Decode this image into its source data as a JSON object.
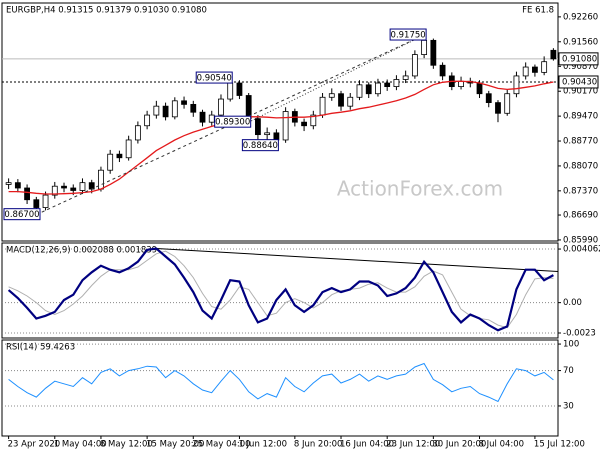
{
  "chart_data": [
    {
      "type": "candlestick",
      "title": "EURGBP,H4 0.91315 0.91379 0.91030 0.91080",
      "corner_label": "FE 61.8",
      "watermark": "ActionForex.com",
      "categories": [
        "23 Apr 2020",
        null,
        null,
        null,
        null,
        "1 May 04:00",
        null,
        null,
        null,
        null,
        "8 May 12:00",
        null,
        null,
        null,
        null,
        "15 May 20:00",
        null,
        null,
        null,
        null,
        "25 May 04:00",
        null,
        null,
        null,
        null,
        "1 Jun 12:00",
        null,
        null,
        null,
        null,
        null,
        "8 Jun 20:00",
        null,
        null,
        null,
        null,
        "16 Jun 04:00",
        null,
        null,
        null,
        null,
        "23 Jun 12:00",
        null,
        null,
        null,
        null,
        "30 Jun 20:00",
        null,
        null,
        null,
        null,
        "8 Jul 04:00",
        null,
        null,
        null,
        null,
        null,
        "15 Jul 12:00",
        null,
        null
      ],
      "open": [
        0.8755,
        0.876,
        0.8745,
        0.8712,
        0.869,
        0.8725,
        0.875,
        0.8745,
        0.8738,
        0.876,
        0.8742,
        0.8795,
        0.884,
        0.883,
        0.888,
        0.892,
        0.895,
        0.8975,
        0.8945,
        0.899,
        0.898,
        0.8958,
        0.893,
        0.895,
        0.8995,
        0.904,
        0.9005,
        0.894,
        0.8895,
        0.89,
        0.888,
        0.896,
        0.893,
        0.892,
        0.895,
        0.9,
        0.901,
        0.8975,
        0.9,
        0.9035,
        0.901,
        0.904,
        0.903,
        0.905,
        0.906,
        0.912,
        0.916,
        0.909,
        0.906,
        0.903,
        0.9045,
        0.904,
        0.901,
        0.8985,
        0.8955,
        0.901,
        0.906,
        0.9085,
        0.907,
        0.9132
      ],
      "high": [
        0.8772,
        0.877,
        0.8755,
        0.872,
        0.8735,
        0.8762,
        0.876,
        0.8755,
        0.8772,
        0.8768,
        0.8805,
        0.8852,
        0.885,
        0.8892,
        0.8932,
        0.8962,
        0.899,
        0.8985,
        0.9,
        0.9002,
        0.899,
        0.8965,
        0.8962,
        0.9008,
        0.9054,
        0.9048,
        0.9012,
        0.895,
        0.8915,
        0.891,
        0.8972,
        0.8968,
        0.894,
        0.8962,
        0.9012,
        0.9025,
        0.9018,
        0.9012,
        0.9048,
        0.9042,
        0.9052,
        0.905,
        0.9062,
        0.9075,
        0.9132,
        0.9175,
        0.9165,
        0.9098,
        0.907,
        0.9058,
        0.9055,
        0.9048,
        0.9018,
        0.8992,
        0.9022,
        0.9072,
        0.9098,
        0.9092,
        0.9115,
        0.9138
      ],
      "low": [
        0.8742,
        0.8733,
        0.87,
        0.867,
        0.8682,
        0.8715,
        0.8733,
        0.8725,
        0.8728,
        0.873,
        0.8735,
        0.8785,
        0.8818,
        0.8822,
        0.887,
        0.891,
        0.894,
        0.8935,
        0.8938,
        0.8968,
        0.8945,
        0.8918,
        0.892,
        0.8942,
        0.8988,
        0.8995,
        0.893,
        0.8882,
        0.888,
        0.8864,
        0.8872,
        0.8918,
        0.8905,
        0.891,
        0.8942,
        0.899,
        0.8962,
        0.8965,
        0.8992,
        0.8998,
        0.9002,
        0.9018,
        0.902,
        0.904,
        0.9052,
        0.911,
        0.908,
        0.9048,
        0.902,
        0.9022,
        0.9028,
        0.8998,
        0.8972,
        0.893,
        0.8948,
        0.9,
        0.905,
        0.9058,
        0.9062,
        0.9103
      ],
      "close": [
        0.876,
        0.8745,
        0.8712,
        0.869,
        0.8725,
        0.875,
        0.8745,
        0.8738,
        0.876,
        0.8742,
        0.8795,
        0.884,
        0.883,
        0.888,
        0.892,
        0.895,
        0.8975,
        0.8945,
        0.899,
        0.898,
        0.8958,
        0.893,
        0.895,
        0.8995,
        0.904,
        0.9005,
        0.894,
        0.8895,
        0.89,
        0.888,
        0.896,
        0.893,
        0.892,
        0.895,
        0.9,
        0.901,
        0.8975,
        0.9,
        0.9035,
        0.901,
        0.904,
        0.903,
        0.905,
        0.906,
        0.912,
        0.916,
        0.909,
        0.906,
        0.903,
        0.9045,
        0.904,
        0.901,
        0.8985,
        0.8955,
        0.901,
        0.906,
        0.9085,
        0.907,
        0.91,
        0.9108
      ],
      "color": "#000000",
      "ma": {
        "color": "#e41a1c",
        "values": [
          0.8735,
          0.8735,
          0.8733,
          0.873,
          0.8728,
          0.8728,
          0.8729,
          0.873,
          0.8732,
          0.8735,
          0.8742,
          0.8755,
          0.877,
          0.879,
          0.881,
          0.883,
          0.885,
          0.8865,
          0.888,
          0.8892,
          0.8902,
          0.891,
          0.8918,
          0.8925,
          0.8935,
          0.8942,
          0.8945,
          0.8945,
          0.8944,
          0.8942,
          0.8943,
          0.8944,
          0.8944,
          0.8946,
          0.895,
          0.8955,
          0.8958,
          0.8962,
          0.8968,
          0.8972,
          0.8978,
          0.8984,
          0.899,
          0.8998,
          0.9008,
          0.9022,
          0.9035,
          0.9042,
          0.9045,
          0.9045,
          0.9044,
          0.904,
          0.9033,
          0.9025,
          0.9022,
          0.9024,
          0.9028,
          0.9032,
          0.9038,
          0.9043
        ]
      },
      "price_labels": [
        {
          "value": 0.9108,
          "label": "0.91080"
        },
        {
          "value": 0.9043,
          "label": "0.90430"
        }
      ],
      "annotations": [
        {
          "value": 0.867,
          "label": "0.86700"
        },
        {
          "value": 0.9054,
          "label": "0.90540"
        },
        {
          "value": 0.9175,
          "label": "0.91750"
        },
        {
          "value": 0.8864,
          "label": "0.88640"
        },
        {
          "value": 0.893,
          "label": "0.89300"
        }
      ],
      "ylim": [
        0.8596,
        0.9265
      ],
      "yticks": [
        {
          "value": 0.8599,
          "label": "0.85990"
        },
        {
          "value": 0.8669,
          "label": "0.86690"
        },
        {
          "value": 0.8737,
          "label": "0.87370"
        },
        {
          "value": 0.8807,
          "label": "0.88070"
        },
        {
          "value": 0.8877,
          "label": "0.88770"
        },
        {
          "value": 0.8947,
          "label": "0.89470"
        },
        {
          "value": 0.9017,
          "label": "0.90170"
        },
        {
          "value": 0.9087,
          "label": "0.90870"
        },
        {
          "value": 0.9156,
          "label": "0.91560"
        },
        {
          "value": 0.9226,
          "label": "0.92260"
        }
      ]
    },
    {
      "type": "macd",
      "title": "MACD(12,26,9) 0.002088 0.001839",
      "series": [
        {
          "color": "#000080",
          "values": [
            0.00095,
            0.00035,
            -0.0004,
            -0.0012,
            -0.001,
            -0.0007,
            0.0002,
            0.0006,
            0.0017,
            0.0023,
            0.0028,
            0.0025,
            0.0023,
            0.0026,
            0.0031,
            0.004,
            0.0041,
            0.0035,
            0.0029,
            0.0019,
            0.0008,
            -0.0006,
            -0.0012,
            0.0002,
            0.0017,
            0.0016,
            -0.0002,
            -0.0015,
            -0.0012,
            0.0002,
            0.001,
            -0.0002,
            -0.0007,
            -0.0002,
            0.0008,
            0.0011,
            0.0008,
            0.001,
            0.0016,
            0.0016,
            0.0013,
            0.0005,
            0.0007,
            0.0011,
            0.0019,
            0.0031,
            0.0023,
            0.0008,
            -0.0007,
            -0.0015,
            -0.0009,
            -0.0012,
            -0.0017,
            -0.0021,
            -0.0018,
            0.001,
            0.0025,
            0.0025,
            0.0017,
            0.002088
          ]
        },
        {
          "color": "#b0b0b0",
          "values": [
            0.0012,
            0.0009,
            0.0005,
            0,
            -0.0006,
            -0.0009,
            -0.0006,
            -0.0001,
            0.0005,
            0.0013,
            0.002,
            0.0025,
            0.0025,
            0.0025,
            0.0027,
            0.0032,
            0.0037,
            0.0039,
            0.0035,
            0.0028,
            0.0019,
            0.0007,
            -0.0003,
            -0.0005,
            0.0002,
            0.0012,
            0.001,
            0,
            -0.001,
            -0.0008,
            0,
            0.0003,
            0,
            -0.0004,
            0,
            0.0006,
            0.0009,
            0.001,
            0.0011,
            0.0014,
            0.0015,
            0.0011,
            0.0008,
            0.0008,
            0.0012,
            0.002,
            0.0024,
            0.0021,
            0.0008,
            -0.0005,
            -0.001,
            -0.0012,
            -0.0013,
            -0.0017,
            -0.0019,
            -0.0009,
            0.0006,
            0.0018,
            0.0019,
            0.001839
          ]
        }
      ],
      "ylim": [
        -0.00268,
        0.00452
      ],
      "yticks": [
        0.004062,
        {
          "value": 0,
          "label": "0.00"
        },
        -0.0023
      ],
      "grid": true
    },
    {
      "type": "rsi",
      "title": "RSI(14) 59.4263",
      "color": "#1e90ff",
      "values": [
        60,
        52,
        45,
        40,
        50,
        58,
        55,
        52,
        62,
        55,
        68,
        72,
        64,
        70,
        72,
        75,
        74,
        62,
        70,
        64,
        55,
        48,
        45,
        58,
        70,
        60,
        46,
        38,
        44,
        40,
        62,
        52,
        46,
        56,
        64,
        66,
        56,
        60,
        66,
        58,
        64,
        60,
        64,
        66,
        74,
        78,
        60,
        54,
        46,
        50,
        52,
        44,
        40,
        35,
        55,
        72,
        70,
        64,
        68,
        59.4263
      ],
      "ylim": [
        -4,
        104.6
      ],
      "yticks": [
        100,
        70,
        30
      ],
      "grid": true
    }
  ]
}
